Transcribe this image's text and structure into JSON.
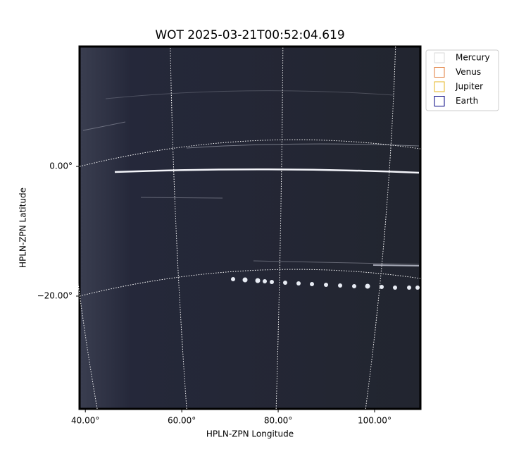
{
  "chart_data": {
    "type": "image",
    "title": "WOT 2025-03-21T00:52:04.619",
    "xlabel": "HPLN-ZPN Longitude",
    "ylabel": "HPLN-ZPN Latitude",
    "xlim": [
      38.8,
      109.5
    ],
    "ylim": [
      -37.4,
      18.5
    ],
    "xticks": [
      {
        "value": 40,
        "label": "40.00°"
      },
      {
        "value": 60,
        "label": "60.00°"
      },
      {
        "value": 80,
        "label": "80.00°"
      },
      {
        "value": 100,
        "label": "100.00°"
      }
    ],
    "yticks": [
      {
        "value": 0,
        "label": "0.00°"
      },
      {
        "value": -20,
        "label": "−20.00°"
      }
    ],
    "grid": true,
    "legend_position": "upper right outside",
    "series": [
      {
        "name": "Mercury",
        "color": "#d9d9d9"
      },
      {
        "name": "Venus",
        "color": "#e07b39"
      },
      {
        "name": "Jupiter",
        "color": "#e6b422"
      },
      {
        "name": "Earth",
        "color": "#000080"
      }
    ]
  }
}
